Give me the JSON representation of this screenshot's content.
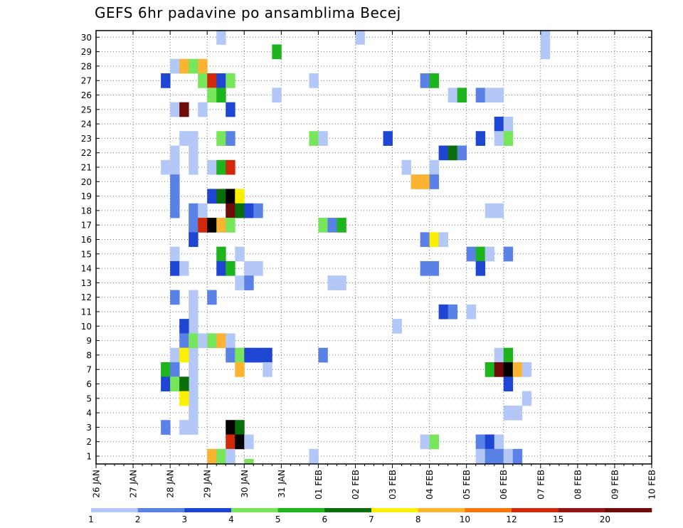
{
  "chart_data": {
    "type": "heatmap",
    "title": "GEFS 6hr padavine po ansamblima Becej",
    "xlabel": "",
    "ylabel": "",
    "x_tick_labels": [
      "26 JAN",
      "27 JAN",
      "28 JAN",
      "29 JAN",
      "30 JAN",
      "31 JAN",
      "01 FEB",
      "02 FEB",
      "03 FEB",
      "04 FEB",
      "05 FEB",
      "06 FEB",
      "07 FEB",
      "08 FEB",
      "09 FEB",
      "10 FEB"
    ],
    "y_range": [
      1,
      30
    ],
    "grid": true,
    "step_hours": 6,
    "legend": {
      "placement": "bottom",
      "colors": [
        "#b4c8f8",
        "#5a82e6",
        "#1e46d2",
        "#78e65a",
        "#1eb41e",
        "#0a6e0a",
        "#faf000",
        "#fab432",
        "#fa780a",
        "#d2280a",
        "#961414",
        "#6e0a0a"
      ],
      "labels": [
        "1",
        "2",
        "3",
        "4",
        "5",
        "6",
        "7",
        "8",
        "10",
        "12",
        "15",
        "20"
      ]
    },
    "cells": [
      [
        13,
        1,
        1
      ],
      [
        13,
        30,
        1
      ],
      [
        28,
        30,
        1
      ],
      [
        48,
        30,
        1
      ],
      [
        48,
        29,
        1
      ],
      [
        65,
        30,
        1
      ],
      [
        66,
        30,
        1
      ],
      [
        66,
        29,
        1
      ],
      [
        66,
        28,
        1
      ],
      [
        66,
        27,
        1
      ],
      [
        66,
        26,
        1
      ],
      [
        66,
        25,
        1
      ],
      [
        66,
        23,
        1
      ],
      [
        66,
        22,
        1
      ],
      [
        66,
        21,
        1
      ],
      [
        66,
        20,
        1
      ],
      [
        10,
        23,
        1
      ],
      [
        10,
        22,
        1
      ],
      [
        10,
        21,
        1
      ],
      [
        10,
        17,
        1
      ],
      [
        10,
        12,
        1
      ],
      [
        10,
        11,
        1
      ],
      [
        10,
        10,
        1
      ],
      [
        10,
        9,
        1
      ],
      [
        10,
        8,
        1
      ],
      [
        10,
        7,
        1
      ],
      [
        10,
        6,
        1
      ],
      [
        10,
        5,
        1
      ],
      [
        10,
        4,
        1
      ],
      [
        10,
        3,
        1
      ],
      [
        19,
        29,
        5
      ],
      [
        8,
        28,
        1
      ],
      [
        9,
        28,
        8
      ],
      [
        10,
        28,
        4
      ],
      [
        11,
        28,
        8
      ],
      [
        7,
        27,
        3
      ],
      [
        11,
        27,
        4
      ],
      [
        12,
        27,
        10
      ],
      [
        13,
        27,
        3
      ],
      [
        14,
        27,
        4
      ],
      [
        23,
        27,
        1
      ],
      [
        35,
        27,
        2
      ],
      [
        36,
        27,
        5
      ],
      [
        12,
        26,
        4
      ],
      [
        13,
        26,
        5
      ],
      [
        19,
        26,
        1
      ],
      [
        38,
        26,
        1
      ],
      [
        39,
        26,
        5
      ],
      [
        41,
        26,
        2
      ],
      [
        42,
        26,
        1
      ],
      [
        43,
        26,
        1
      ],
      [
        8,
        25,
        1
      ],
      [
        9,
        25,
        12
      ],
      [
        11,
        25,
        1
      ],
      [
        14,
        25,
        3
      ],
      [
        43,
        24,
        3
      ],
      [
        44,
        24,
        1
      ],
      [
        9,
        23,
        1
      ],
      [
        13,
        23,
        4
      ],
      [
        14,
        23,
        2
      ],
      [
        23,
        23,
        4
      ],
      [
        24,
        23,
        1
      ],
      [
        31,
        23,
        3
      ],
      [
        41,
        23,
        3
      ],
      [
        43,
        23,
        1
      ],
      [
        44,
        23,
        4
      ],
      [
        8,
        22,
        1
      ],
      [
        37,
        22,
        3
      ],
      [
        38,
        22,
        6
      ],
      [
        39,
        22,
        2
      ],
      [
        7,
        21,
        1
      ],
      [
        8,
        21,
        1
      ],
      [
        12,
        21,
        1
      ],
      [
        13,
        21,
        5
      ],
      [
        14,
        21,
        10
      ],
      [
        33,
        21,
        1
      ],
      [
        36,
        21,
        1
      ],
      [
        8,
        20,
        2
      ],
      [
        34,
        20,
        8
      ],
      [
        35,
        20,
        8
      ],
      [
        36,
        20,
        2
      ],
      [
        8,
        19,
        2
      ],
      [
        12,
        19,
        3
      ],
      [
        13,
        19,
        6
      ],
      [
        14,
        19,
        20
      ],
      [
        15,
        19,
        7
      ],
      [
        8,
        18,
        2
      ],
      [
        10,
        18,
        2
      ],
      [
        11,
        18,
        1
      ],
      [
        14,
        18,
        12
      ],
      [
        15,
        18,
        6
      ],
      [
        16,
        18,
        3
      ],
      [
        17,
        18,
        2
      ],
      [
        42,
        18,
        1
      ],
      [
        43,
        18,
        1
      ],
      [
        10,
        17,
        2
      ],
      [
        11,
        17,
        10
      ],
      [
        12,
        17,
        15
      ],
      [
        13,
        17,
        8
      ],
      [
        14,
        17,
        4
      ],
      [
        24,
        17,
        4
      ],
      [
        25,
        17,
        2
      ],
      [
        26,
        17,
        5
      ],
      [
        10,
        16,
        3
      ],
      [
        35,
        16,
        2
      ],
      [
        36,
        16,
        7
      ],
      [
        37,
        16,
        1
      ],
      [
        8,
        15,
        1
      ],
      [
        13,
        15,
        5
      ],
      [
        15,
        15,
        1
      ],
      [
        40,
        15,
        2
      ],
      [
        41,
        15,
        5
      ],
      [
        42,
        15,
        1
      ],
      [
        44,
        15,
        2
      ],
      [
        8,
        14,
        3
      ],
      [
        9,
        14,
        1
      ],
      [
        13,
        14,
        3
      ],
      [
        14,
        14,
        5
      ],
      [
        16,
        14,
        1
      ],
      [
        17,
        14,
        1
      ],
      [
        35,
        14,
        2
      ],
      [
        36,
        14,
        2
      ],
      [
        41,
        14,
        3
      ],
      [
        15,
        13,
        1
      ],
      [
        16,
        13,
        2
      ],
      [
        25,
        13,
        1
      ],
      [
        26,
        13,
        1
      ],
      [
        8,
        12,
        2
      ],
      [
        12,
        12,
        2
      ],
      [
        37,
        11,
        3
      ],
      [
        38,
        11,
        2
      ],
      [
        40,
        11,
        1
      ],
      [
        9,
        10,
        3
      ],
      [
        32,
        10,
        1
      ],
      [
        9,
        9,
        2
      ],
      [
        10,
        9,
        4
      ],
      [
        11,
        9,
        1
      ],
      [
        12,
        9,
        4
      ],
      [
        13,
        9,
        8
      ],
      [
        14,
        9,
        1
      ],
      [
        8,
        8,
        1
      ],
      [
        9,
        8,
        7
      ],
      [
        14,
        8,
        2
      ],
      [
        15,
        8,
        4
      ],
      [
        16,
        8,
        3
      ],
      [
        17,
        8,
        3
      ],
      [
        18,
        8,
        3
      ],
      [
        24,
        8,
        2
      ],
      [
        43,
        8,
        1
      ],
      [
        44,
        8,
        5
      ],
      [
        7,
        7,
        5
      ],
      [
        8,
        7,
        2
      ],
      [
        15,
        7,
        8
      ],
      [
        18,
        7,
        1
      ],
      [
        42,
        7,
        5
      ],
      [
        43,
        7,
        12
      ],
      [
        44,
        7,
        15
      ],
      [
        45,
        7,
        8
      ],
      [
        46,
        7,
        1
      ],
      [
        7,
        6,
        3
      ],
      [
        8,
        6,
        4
      ],
      [
        9,
        6,
        6
      ],
      [
        44,
        6,
        3
      ],
      [
        9,
        5,
        7
      ],
      [
        46,
        5,
        1
      ],
      [
        44,
        4,
        1
      ],
      [
        45,
        4,
        1
      ],
      [
        7,
        3,
        2
      ],
      [
        9,
        3,
        1
      ],
      [
        14,
        3,
        20
      ],
      [
        15,
        3,
        6
      ],
      [
        14,
        2,
        10
      ],
      [
        15,
        2,
        15
      ],
      [
        16,
        2,
        1
      ],
      [
        35,
        2,
        1
      ],
      [
        36,
        2,
        4
      ],
      [
        41,
        2,
        2
      ],
      [
        42,
        2,
        3
      ],
      [
        43,
        2,
        1
      ],
      [
        12,
        1,
        8
      ],
      [
        13,
        1,
        4
      ],
      [
        14,
        1,
        1
      ],
      [
        23,
        1,
        1
      ],
      [
        41,
        1,
        1
      ],
      [
        42,
        1,
        2
      ],
      [
        43,
        1,
        2
      ],
      [
        44,
        1,
        1
      ],
      [
        45,
        1,
        2
      ],
      [
        16,
        0,
        4
      ]
    ]
  }
}
